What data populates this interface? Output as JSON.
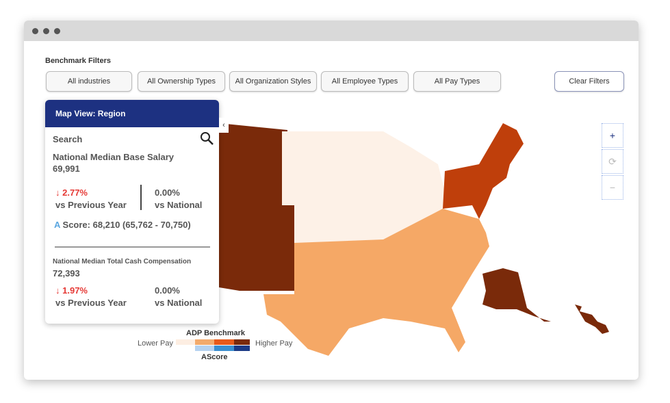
{
  "filters": {
    "title": "Benchmark Filters",
    "buttons": [
      "All industries",
      "All Ownership Types",
      "All Organization Styles",
      "All Employee Types",
      "All Pay Types"
    ],
    "clear": "Clear Filters"
  },
  "panel": {
    "header": "Map View: Region",
    "search": "Search",
    "base": {
      "label": "National Median Base Salary",
      "value": "69,991",
      "prev_pct": "2.77%",
      "prev_label": "vs Previous Year",
      "nat_pct": "0.00%",
      "nat_label": "vs National",
      "ascore_icon": "A",
      "ascore": "Score: 68,210 (65,762 - 70,750)"
    },
    "cash": {
      "label": "National Median Total Cash Compensation",
      "value": "72,393",
      "prev_pct": "1.97%",
      "prev_label": "vs Previous Year",
      "nat_pct": "0.00%",
      "nat_label": "vs National"
    }
  },
  "map": {
    "colors": {
      "west": "#7a2a0a",
      "midwest": "#fdf1e7",
      "northeast": "#bf3f0b",
      "south": "#f5a866"
    },
    "controls": {
      "zoom_in": "+",
      "reset": "⟳",
      "zoom_out": "−"
    }
  },
  "legend": {
    "title": "ADP Benchmark",
    "low": "Lower Pay",
    "high": "Higher Pay",
    "ascore": "AScore",
    "pay_colors": [
      "#fdeee2",
      "#f3aa6c",
      "#e85a1a",
      "#7a2a0a"
    ],
    "ascore_colors": [
      "#b5d2f0",
      "#3b8fd0",
      "#1b3a85"
    ]
  }
}
